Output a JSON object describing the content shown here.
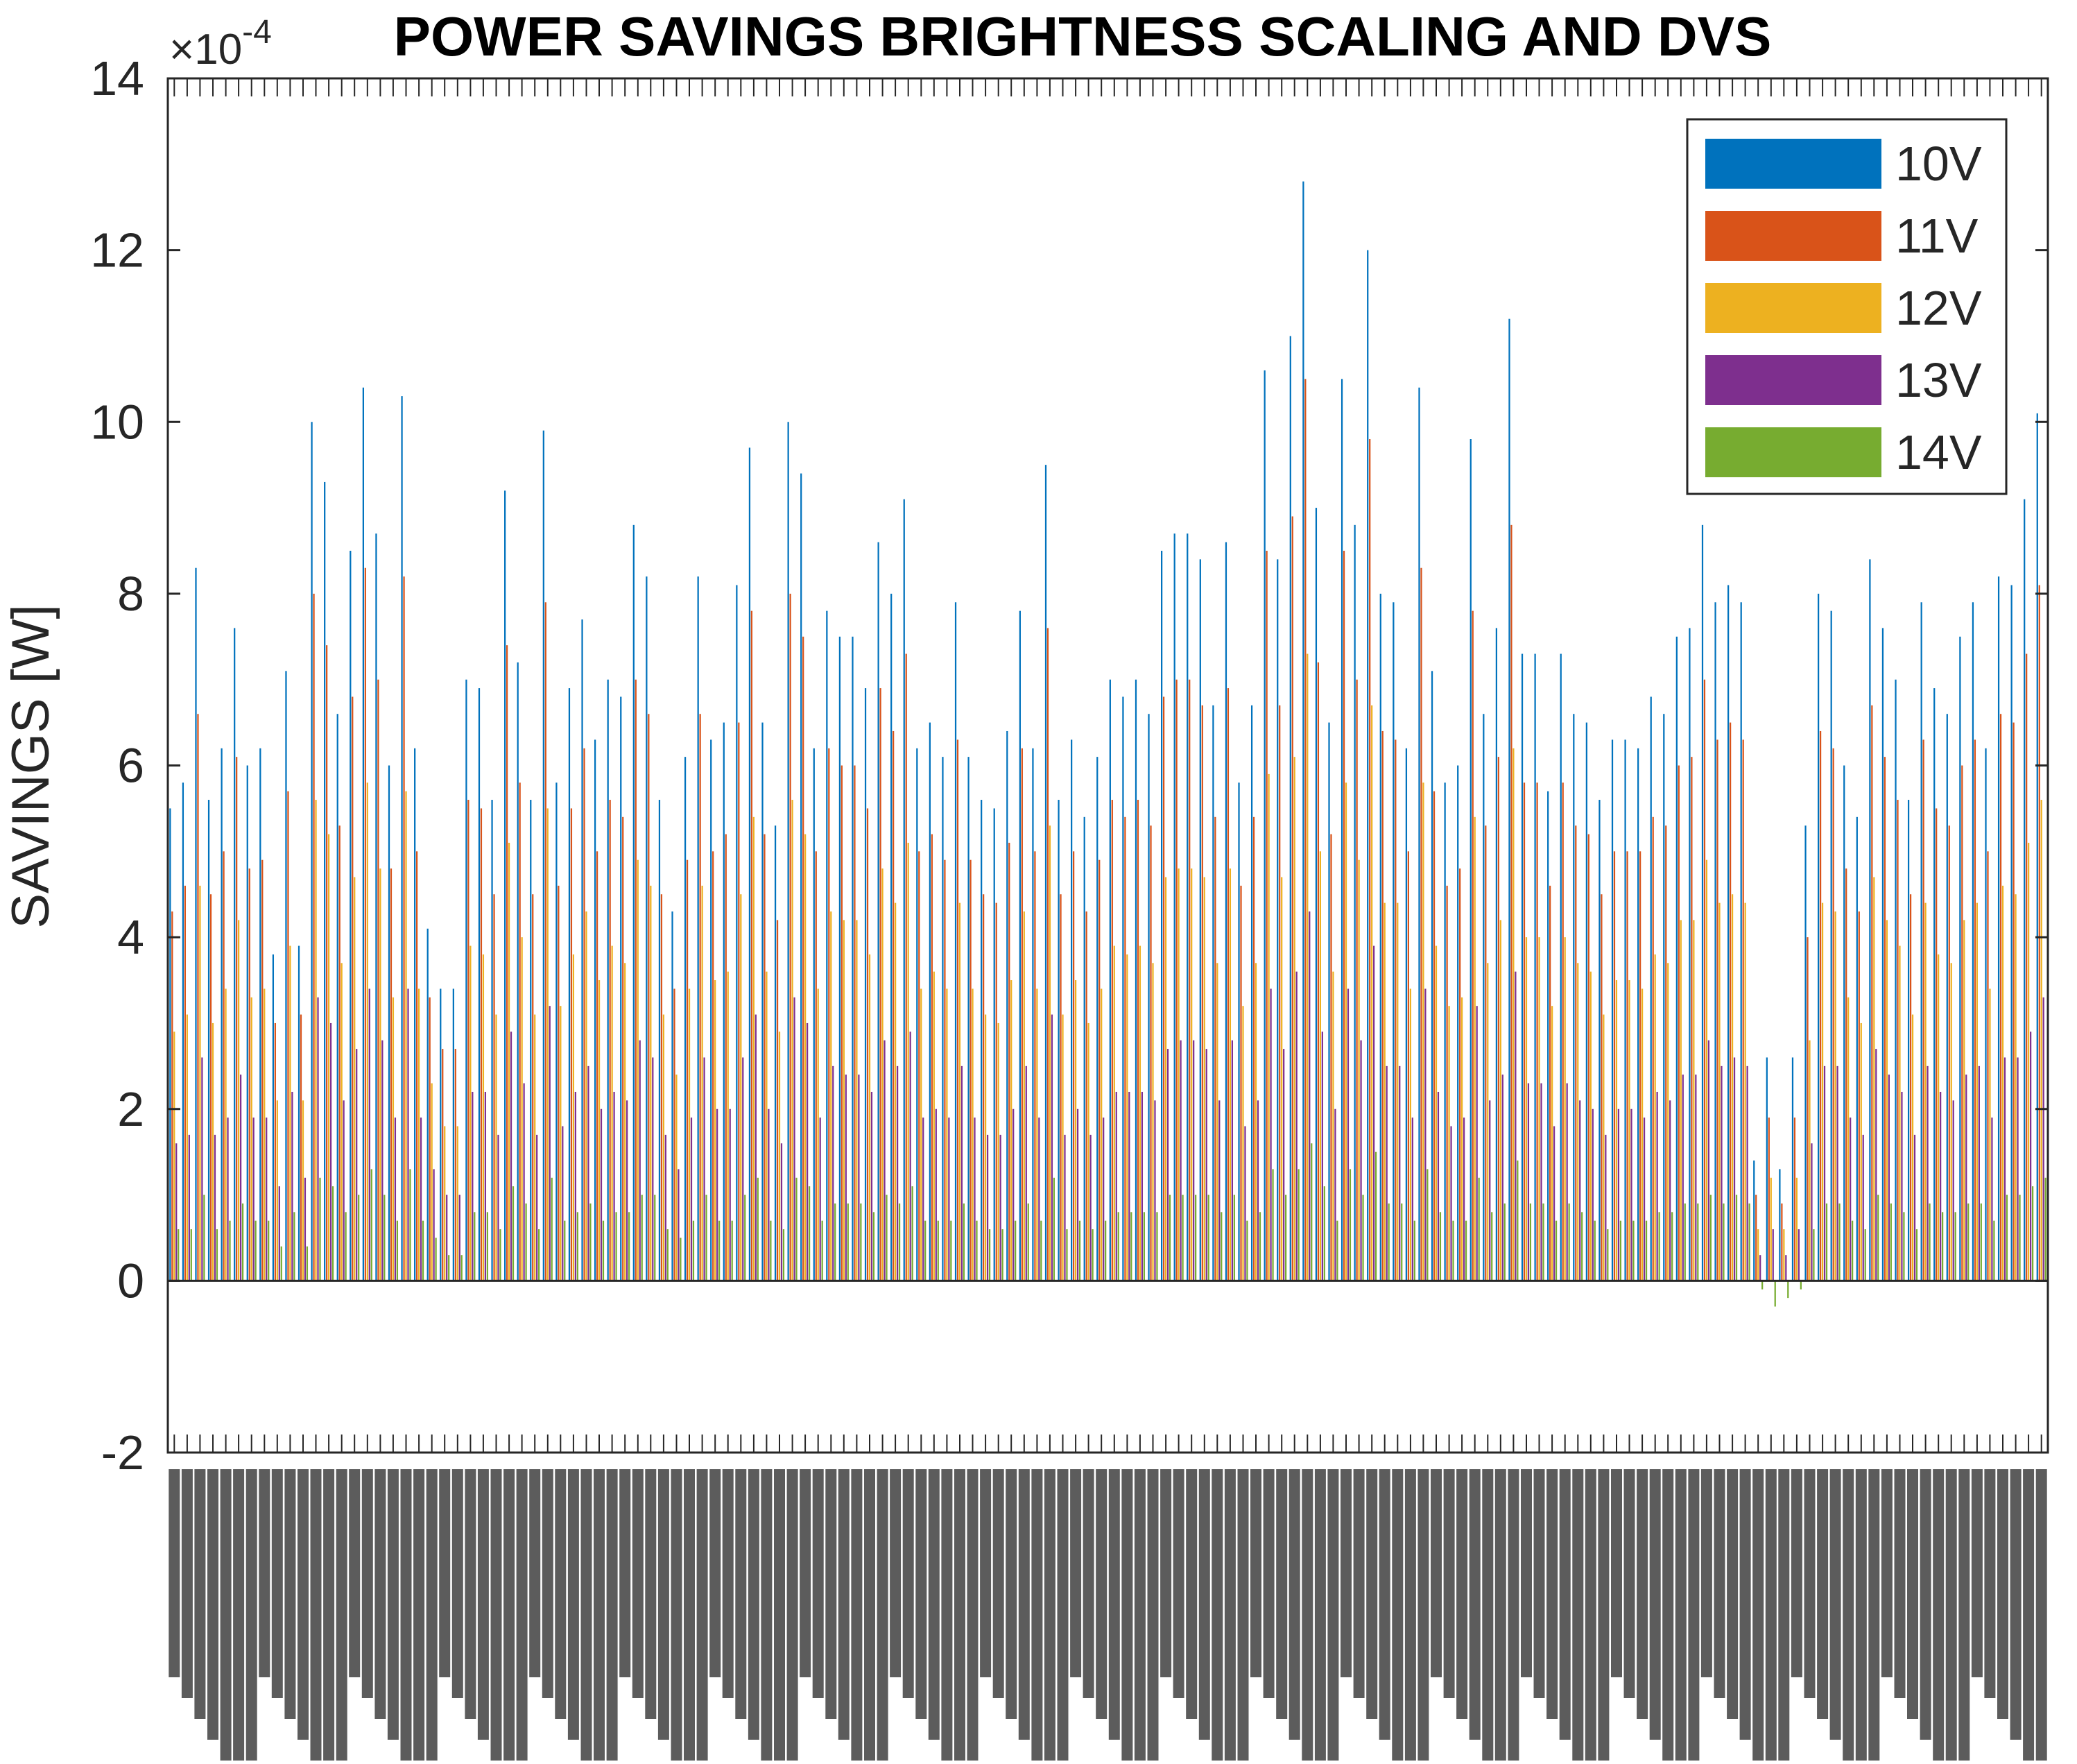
{
  "chart_data": {
    "type": "bar",
    "title": "POWER SAVINGS BRIGHTNESS SCALING AND DVS",
    "ylabel": "SAVINGS  [W]",
    "xlabel": "",
    "y_exponent_label": "×10",
    "y_exponent_power": "-4",
    "ylim": [
      -2,
      14
    ],
    "yticks": [
      -2,
      0,
      2,
      4,
      6,
      8,
      10,
      12,
      14
    ],
    "ytick_labels": [
      "-2",
      "0",
      "2",
      "4",
      "6",
      "8",
      "10",
      "12",
      "14"
    ],
    "grid": false,
    "legend_position": "top-right",
    "x_tick_labels_note": "Dense rotated image filename labels along x-axis (e.g. \"...0075.jpg\"), overlapping and illegible",
    "series": [
      {
        "name": "10V",
        "color": "#0072BD",
        "values": [
          5.5,
          5.8,
          8.3,
          5.6,
          6.2,
          7.6,
          6.0,
          6.2,
          3.8,
          7.1,
          3.9,
          10.0,
          9.3,
          6.6,
          8.5,
          10.4,
          8.7,
          6.0,
          10.3,
          6.2,
          4.1,
          3.4,
          3.4,
          7.0,
          6.9,
          5.6,
          9.2,
          7.2,
          5.6,
          9.9,
          5.8,
          6.9,
          7.7,
          6.3,
          7.0,
          6.8,
          8.8,
          8.2,
          5.6,
          4.3,
          6.1,
          8.2,
          6.3,
          6.5,
          8.1,
          9.7,
          6.5,
          5.3,
          10.0,
          9.4,
          6.2,
          7.8,
          7.5,
          7.5,
          6.9,
          8.6,
          8.0,
          9.1,
          6.2,
          6.5,
          6.1,
          7.9,
          6.1,
          5.6,
          5.5,
          6.4,
          7.8,
          6.2,
          9.5,
          5.6,
          6.3,
          5.4,
          6.1,
          7.0,
          6.8,
          7.0,
          6.6,
          8.5,
          8.7,
          8.7,
          8.4,
          6.7,
          8.6,
          5.8,
          6.7,
          10.6,
          8.4,
          11.0,
          12.8,
          9.0,
          6.5,
          10.5,
          8.8,
          12.0,
          8.0,
          7.9,
          6.2,
          10.4,
          7.1,
          5.8,
          6.0,
          9.8,
          6.6,
          7.6,
          11.2,
          7.3,
          7.3,
          5.7,
          7.3,
          6.6,
          6.5,
          5.6,
          6.3,
          6.3,
          6.2,
          6.8,
          6.6,
          7.5,
          7.6,
          8.8,
          7.9,
          8.1,
          7.9,
          1.4,
          2.6,
          1.3,
          2.6,
          5.3,
          8.0,
          7.8,
          6.0,
          5.4,
          8.4,
          7.6,
          7.0,
          5.6,
          7.9,
          6.9,
          6.6,
          7.5,
          7.9,
          6.2,
          8.2,
          8.1,
          9.1,
          10.1
        ]
      },
      {
        "name": "11V",
        "color": "#D95319",
        "values": [
          4.3,
          4.6,
          6.6,
          4.5,
          5.0,
          6.1,
          4.8,
          4.9,
          3.0,
          5.7,
          3.1,
          8.0,
          7.4,
          5.3,
          6.8,
          8.3,
          7.0,
          4.8,
          8.2,
          5.0,
          3.3,
          2.7,
          2.7,
          5.6,
          5.5,
          4.5,
          7.4,
          5.8,
          4.5,
          7.9,
          4.6,
          5.5,
          6.2,
          5.0,
          5.6,
          5.4,
          7.0,
          6.6,
          4.5,
          3.4,
          4.9,
          6.6,
          5.0,
          5.2,
          6.5,
          7.8,
          5.2,
          4.2,
          8.0,
          7.5,
          5.0,
          6.2,
          6.0,
          6.0,
          5.5,
          6.9,
          6.4,
          7.3,
          5.0,
          5.2,
          4.9,
          6.3,
          4.9,
          4.5,
          4.4,
          5.1,
          6.2,
          5.0,
          7.6,
          4.5,
          5.0,
          4.3,
          4.9,
          5.6,
          5.4,
          5.6,
          5.3,
          6.8,
          7.0,
          7.0,
          6.7,
          5.4,
          6.9,
          4.6,
          5.4,
          8.5,
          6.7,
          8.9,
          10.5,
          7.2,
          5.2,
          8.5,
          7.0,
          9.8,
          6.4,
          6.3,
          5.0,
          8.3,
          5.7,
          4.6,
          4.8,
          7.8,
          5.3,
          6.1,
          8.8,
          5.8,
          5.8,
          4.6,
          5.8,
          5.3,
          5.2,
          4.5,
          5.0,
          5.0,
          5.0,
          5.4,
          5.3,
          6.0,
          6.1,
          7.0,
          6.3,
          6.5,
          6.3,
          1.0,
          1.9,
          0.9,
          1.9,
          4.0,
          6.4,
          6.2,
          4.8,
          4.3,
          6.7,
          6.1,
          5.6,
          4.5,
          6.3,
          5.5,
          5.3,
          6.0,
          6.3,
          5.0,
          6.6,
          6.5,
          7.3,
          8.1
        ]
      },
      {
        "name": "12V",
        "color": "#EDB120",
        "values": [
          2.9,
          3.1,
          4.6,
          3.0,
          3.4,
          4.2,
          3.3,
          3.4,
          2.1,
          3.9,
          2.1,
          5.6,
          5.2,
          3.7,
          4.7,
          5.8,
          4.8,
          3.3,
          5.7,
          3.4,
          2.3,
          1.8,
          1.8,
          3.9,
          3.8,
          3.1,
          5.1,
          4.0,
          3.1,
          5.5,
          3.2,
          3.8,
          4.3,
          3.5,
          3.9,
          3.7,
          4.9,
          4.6,
          3.1,
          2.4,
          3.4,
          4.6,
          3.5,
          3.6,
          4.5,
          5.4,
          3.6,
          2.9,
          5.6,
          5.2,
          3.4,
          4.3,
          4.2,
          4.2,
          3.8,
          4.8,
          4.4,
          5.1,
          3.4,
          3.6,
          3.4,
          4.4,
          3.4,
          3.1,
          3.0,
          3.5,
          4.3,
          3.4,
          5.3,
          3.1,
          3.5,
          3.0,
          3.4,
          3.9,
          3.8,
          3.9,
          3.7,
          4.7,
          4.8,
          4.8,
          4.7,
          3.7,
          4.8,
          3.2,
          3.7,
          5.9,
          4.7,
          6.1,
          7.3,
          5.0,
          3.6,
          5.8,
          4.9,
          6.7,
          4.4,
          4.4,
          3.4,
          5.8,
          3.9,
          3.2,
          3.3,
          5.4,
          3.7,
          4.2,
          6.2,
          4.0,
          4.0,
          3.2,
          4.0,
          3.7,
          3.6,
          3.1,
          3.5,
          3.5,
          3.4,
          3.8,
          3.7,
          4.2,
          4.2,
          4.9,
          4.4,
          4.5,
          4.4,
          0.6,
          1.2,
          0.6,
          1.2,
          2.8,
          4.4,
          4.3,
          3.3,
          3.0,
          4.7,
          4.2,
          3.9,
          3.1,
          4.4,
          3.8,
          3.7,
          4.2,
          4.4,
          3.4,
          4.6,
          4.5,
          5.1,
          5.6
        ]
      },
      {
        "name": "13V",
        "color": "#7E2F8E",
        "values": [
          1.6,
          1.7,
          2.6,
          1.7,
          1.9,
          2.4,
          1.9,
          1.9,
          1.1,
          2.2,
          1.2,
          3.3,
          3.0,
          2.1,
          2.7,
          3.4,
          2.8,
          1.9,
          3.4,
          1.9,
          1.3,
          1.0,
          1.0,
          2.2,
          2.2,
          1.7,
          2.9,
          2.3,
          1.7,
          3.2,
          1.8,
          2.2,
          2.5,
          2.0,
          2.2,
          2.1,
          2.8,
          2.6,
          1.7,
          1.3,
          1.9,
          2.6,
          2.0,
          2.0,
          2.6,
          3.1,
          2.0,
          1.6,
          3.3,
          3.0,
          1.9,
          2.5,
          2.4,
          2.4,
          2.2,
          2.8,
          2.5,
          2.9,
          1.9,
          2.0,
          1.9,
          2.5,
          1.9,
          1.7,
          1.7,
          2.0,
          2.5,
          1.9,
          3.1,
          1.7,
          2.0,
          1.7,
          1.9,
          2.2,
          2.2,
          2.2,
          2.1,
          2.7,
          2.8,
          2.8,
          2.7,
          2.1,
          2.8,
          1.8,
          2.1,
          3.4,
          2.7,
          3.6,
          4.3,
          2.9,
          2.0,
          3.4,
          2.8,
          3.9,
          2.5,
          2.5,
          1.9,
          3.4,
          2.2,
          1.8,
          1.9,
          3.2,
          2.1,
          2.4,
          3.6,
          2.3,
          2.3,
          1.8,
          2.3,
          2.1,
          2.0,
          1.7,
          2.0,
          2.0,
          1.9,
          2.2,
          2.1,
          2.4,
          2.4,
          2.8,
          2.5,
          2.6,
          2.5,
          0.3,
          0.6,
          0.3,
          0.6,
          1.6,
          2.5,
          2.5,
          1.9,
          1.7,
          2.7,
          2.4,
          2.2,
          1.7,
          2.5,
          2.2,
          2.1,
          2.4,
          2.5,
          1.9,
          2.6,
          2.6,
          2.9,
          3.3
        ]
      },
      {
        "name": "14V",
        "color": "#77AC30",
        "values": [
          0.6,
          0.6,
          1.0,
          0.6,
          0.7,
          0.9,
          0.7,
          0.7,
          0.4,
          0.8,
          0.4,
          1.2,
          1.1,
          0.8,
          1.0,
          1.3,
          1.0,
          0.7,
          1.3,
          0.7,
          0.5,
          0.3,
          0.3,
          0.8,
          0.8,
          0.6,
          1.1,
          0.9,
          0.6,
          1.2,
          0.7,
          0.8,
          0.9,
          0.7,
          0.8,
          0.8,
          1.0,
          1.0,
          0.6,
          0.5,
          0.7,
          1.0,
          0.7,
          0.7,
          1.0,
          1.2,
          0.7,
          0.6,
          1.2,
          1.1,
          0.7,
          0.9,
          0.9,
          0.9,
          0.8,
          1.0,
          0.9,
          1.1,
          0.7,
          0.7,
          0.7,
          0.9,
          0.7,
          0.6,
          0.6,
          0.7,
          0.9,
          0.7,
          1.2,
          0.6,
          0.7,
          0.6,
          0.7,
          0.8,
          0.8,
          0.8,
          0.8,
          1.0,
          1.0,
          1.0,
          1.0,
          0.8,
          1.0,
          0.7,
          0.8,
          1.3,
          1.0,
          1.3,
          1.6,
          1.1,
          0.7,
          1.3,
          1.0,
          1.5,
          0.9,
          0.9,
          0.7,
          1.3,
          0.8,
          0.7,
          0.7,
          1.2,
          0.8,
          0.9,
          1.4,
          0.9,
          0.9,
          0.7,
          0.9,
          0.8,
          0.7,
          0.6,
          0.7,
          0.7,
          0.7,
          0.8,
          0.8,
          0.9,
          0.9,
          1.0,
          0.9,
          1.0,
          0.9,
          -0.1,
          -0.3,
          -0.2,
          -0.1,
          0.6,
          0.9,
          0.9,
          0.7,
          0.6,
          1.0,
          0.9,
          0.8,
          0.6,
          0.9,
          0.8,
          0.8,
          0.9,
          0.9,
          0.7,
          1.0,
          1.0,
          1.1,
          1.2
        ]
      }
    ]
  }
}
